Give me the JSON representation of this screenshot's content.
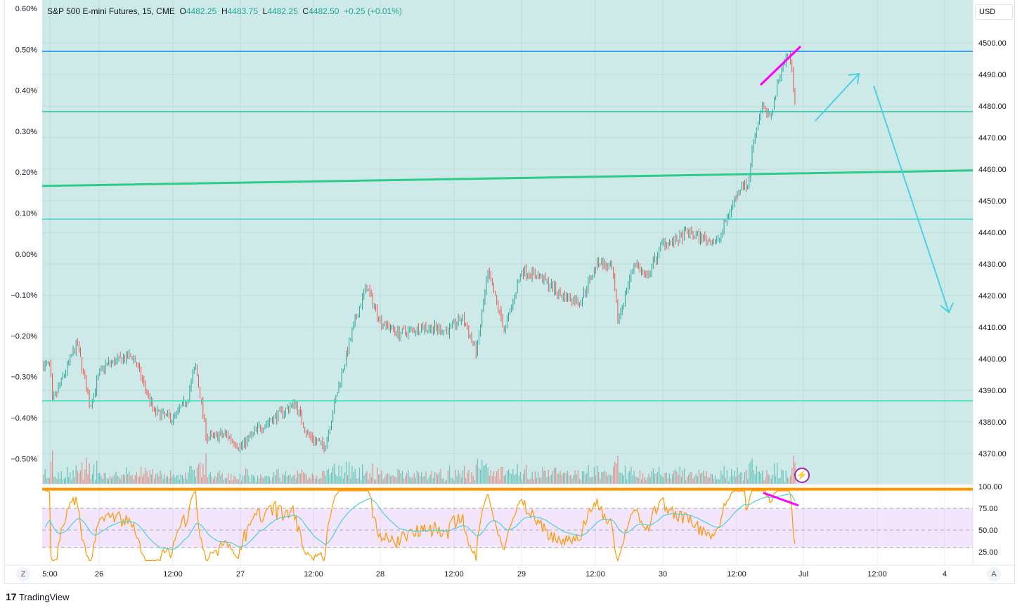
{
  "legend": {
    "symbol": "S&P 500 E-mini Futures, 15, CME",
    "o_label": "O",
    "o": "4482.25",
    "h_label": "H",
    "h": "4483.75",
    "l_label": "L",
    "l": "4482.25",
    "c_label": "C",
    "c": "4482.50",
    "change": "+0.25 (+0.01%)"
  },
  "currency": "USD",
  "brand": "TradingView",
  "colors": {
    "up": "#26a69a",
    "down": "#ef5350",
    "bg": "#cdeae8",
    "rsi": "#ff9800",
    "rsi_ma": "#4dd0e1",
    "rsi_band": "#f3e5fc",
    "magenta": "#ff00ff"
  },
  "chart_data": {
    "type": "candlestick",
    "interval": "15",
    "ylim": [
      4363,
      4513
    ],
    "price_ticks": [
      "4500.00",
      "4490.00",
      "4480.00",
      "4470.00",
      "4460.00",
      "4450.00",
      "4440.00",
      "4430.00",
      "4420.00",
      "4410.00",
      "4400.00",
      "4390.00",
      "4380.00",
      "4370.00"
    ],
    "percent_ticks": [
      "0.60%",
      "0.50%",
      "0.40%",
      "0.30%",
      "0.20%",
      "0.10%",
      "0.00%",
      "−0.10%",
      "−0.20%",
      "−0.30%",
      "−0.40%",
      "−0.50%"
    ],
    "time_ticks": [
      "5:00",
      "26",
      "12:00",
      "27",
      "12:00",
      "28",
      "12:00",
      "29",
      "12:00",
      "30",
      "12:00",
      "Jul",
      "12:00",
      "4"
    ],
    "close_path": [
      [
        "25 05:00",
        4398
      ],
      [
        "25 06:00",
        4386
      ],
      [
        "25 15:30",
        4405
      ],
      [
        "25 20:30",
        4385
      ],
      [
        "26 00:00",
        4395
      ],
      [
        "26 01:00",
        4398
      ],
      [
        "26 05:30",
        4401
      ],
      [
        "26 09:00",
        4383
      ],
      [
        "26 12:00",
        4381
      ],
      [
        "26 14:30",
        4387
      ],
      [
        "26 16:00",
        4398
      ],
      [
        "26 18:00",
        4375
      ],
      [
        "26 21:30",
        4376
      ],
      [
        "27 00:00",
        4372
      ],
      [
        "27 03:00",
        4378
      ],
      [
        "27 09:00",
        4386
      ],
      [
        "27 11:00",
        4376
      ],
      [
        "27 14:00",
        4372
      ],
      [
        "27 17:00",
        4395
      ],
      [
        "27 19:30",
        4412
      ],
      [
        "27 21:30",
        4423
      ],
      [
        "28 00:00",
        4412
      ],
      [
        "28 03:00",
        4408
      ],
      [
        "28 07:00",
        4410
      ],
      [
        "28 11:00",
        4409
      ],
      [
        "28 13:30",
        4413
      ],
      [
        "28 16:00",
        4402
      ],
      [
        "28 18:00",
        4427
      ],
      [
        "28 21:00",
        4409
      ],
      [
        "29 00:00",
        4428
      ],
      [
        "29 03:00",
        4426
      ],
      [
        "29 06:30",
        4420
      ],
      [
        "29 09:30",
        4418
      ],
      [
        "29 12:30",
        4431
      ],
      [
        "29 15:00",
        4428
      ],
      [
        "29 16:00",
        4412
      ],
      [
        "29 19:00",
        4431
      ],
      [
        "29 21:00",
        4425
      ],
      [
        "30 00:00",
        4437
      ],
      [
        "30 02:00",
        4437
      ],
      [
        "30 04:00",
        4440
      ],
      [
        "30 06:30",
        4438
      ],
      [
        "30 09:00",
        4437
      ],
      [
        "30 10:30",
        4445
      ],
      [
        "30 13:00",
        4456
      ],
      [
        "30 14:00",
        4454
      ],
      [
        "30 15:00",
        4469
      ],
      [
        "30 16:30",
        4480
      ],
      [
        "30 18:00",
        4476
      ],
      [
        "30 20:00",
        4492
      ],
      [
        "30 21:30",
        4497
      ],
      [
        "30 22:30",
        4482.5
      ]
    ],
    "horizontal_levels": [
      {
        "price": 4497.3,
        "color": "#2196f3"
      },
      {
        "price": 4478.2,
        "color": "#26b89a"
      },
      {
        "price": 4444.2,
        "color": "#3fd9d0"
      },
      {
        "price": 4386.7,
        "color": "#3fe0c0"
      }
    ],
    "trend_line": {
      "from": 4454.7,
      "to": 4459.6,
      "color": "#2ecc8a"
    },
    "rsi": {
      "ticks": [
        "100.00",
        "75.00",
        "50.00",
        "25.00"
      ],
      "levels": [
        75,
        50,
        30
      ],
      "upper_line": 97
    }
  },
  "buttons": {
    "z": "Z",
    "a": "A"
  }
}
